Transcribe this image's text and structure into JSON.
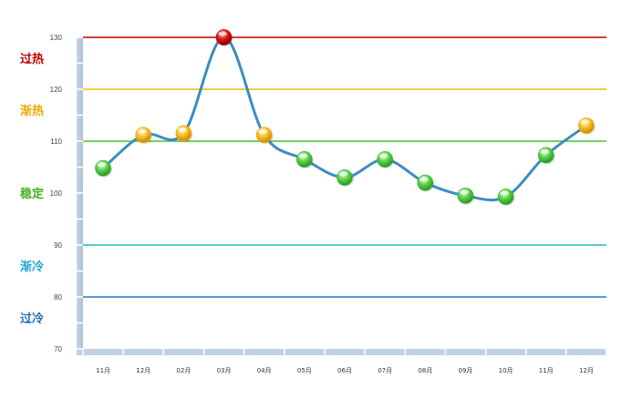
{
  "chart_data": {
    "type": "line",
    "title": "",
    "xlabel": "",
    "ylabel": "",
    "categories": [
      "11月",
      "12月",
      "02月",
      "03月",
      "04月",
      "05月",
      "06月",
      "07月",
      "08月",
      "09月",
      "10月",
      "11月",
      "12月"
    ],
    "series": [
      {
        "values": [
          104.8,
          111.2,
          111.5,
          130.0,
          111.2,
          106.5,
          103.0,
          106.5,
          102.0,
          99.5,
          99.3,
          107.3,
          113.0
        ]
      }
    ],
    "ylim": [
      70,
      130
    ],
    "yticks": [
      70,
      80,
      90,
      100,
      110,
      120,
      130
    ],
    "grid": false,
    "thresholds": [
      {
        "label": "过热",
        "value": 130,
        "color": "#c00000"
      },
      {
        "label": "渐热",
        "value": 120,
        "color": "#f5b800"
      },
      {
        "label": "稳定",
        "value": 110,
        "color": "#43c22c"
      },
      {
        "label": "渐冷",
        "value": 90,
        "color": "#20b8c0"
      },
      {
        "label": "过冷",
        "value": 80,
        "color": "#1f77c8"
      }
    ],
    "band_labels": [
      {
        "text": "过热",
        "color": "#c00000",
        "level": 126
      },
      {
        "text": "渐热",
        "color": "#f0a800",
        "level": 116
      },
      {
        "text": "稳定",
        "color": "#40b020",
        "level": 100
      },
      {
        "text": "渐冷",
        "color": "#20a8d8",
        "level": 86
      },
      {
        "text": "过冷",
        "color": "#1f6fb8",
        "level": 76
      }
    ],
    "line_color": "#3d8cc4",
    "point_colors": {
      "green": "#3cb83a",
      "orange": "#f2b007",
      "red": "#c40d0d"
    },
    "point_categories": [
      "green",
      "orange",
      "orange",
      "red",
      "orange",
      "green",
      "green",
      "green",
      "green",
      "green",
      "green",
      "green",
      "orange"
    ]
  }
}
